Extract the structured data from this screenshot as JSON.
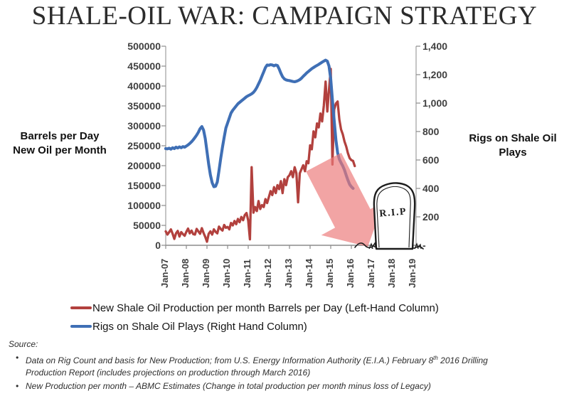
{
  "title": "SHALE-OIL WAR: CAMPAIGN STRATEGY",
  "left_axis": {
    "caption_line1": "Barrels per Day",
    "caption_line2": "New Oil per Month",
    "ticks": [
      "500000",
      "450000",
      "400000",
      "350000",
      "300000",
      "250000",
      "200000",
      "150000",
      "100000",
      "50000",
      "0"
    ]
  },
  "right_axis": {
    "caption_line1": "Rigs on Shale Oil",
    "caption_line2": "Plays",
    "ticks": [
      "1,400",
      "1,200",
      "1,000",
      "800",
      "600",
      "400",
      "200",
      "-"
    ]
  },
  "x_axis": {
    "ticks": [
      "Jan-07",
      "Jan-08",
      "Jan-09",
      "Jan-10",
      "Jan-11",
      "Jan-12",
      "Jan-13",
      "Jan-14",
      "Jan-15",
      "Jan-16",
      "Jan-17",
      "Jan-18",
      "Jan-19"
    ]
  },
  "legend": {
    "items": [
      {
        "label": "New Shale Oil Production per month Barrels per Day (Left-Hand Column)",
        "color": "#b2413e"
      },
      {
        "label": "Rigs on Shale Oil Plays (Right Hand Column)",
        "color": "#3f6fb5"
      }
    ]
  },
  "annotations": {
    "tombstone_text": "R.I.P",
    "arrow_color": "#ec7979"
  },
  "source": {
    "heading": "Source:",
    "bullet_char": "•",
    "bullets": [
      {
        "pre": "Data on Rig Count and basis for New Production; from U.S. Energy Information Authority (E.I.A.) February 8",
        "sup": "th",
        "post": " 2016 Drilling Production Report (includes projections on production through March 2016)"
      },
      {
        "text": "New Production per month – ABMC Estimates (Change in total production per month minus loss of Legacy)"
      }
    ]
  },
  "chart_data": {
    "type": "line",
    "title": "SHALE-OIL WAR: CAMPAIGN STRATEGY",
    "x_unit": "monthly from Jan-2007",
    "x_tick_labels": [
      "Jan-07",
      "Jan-08",
      "Jan-09",
      "Jan-10",
      "Jan-11",
      "Jan-12",
      "Jan-13",
      "Jan-14",
      "Jan-15",
      "Jan-16",
      "Jan-17",
      "Jan-18",
      "Jan-19"
    ],
    "left_ylabel": "Barrels per Day New Oil per Month",
    "right_ylabel": "Rigs on Shale Oil Plays",
    "left_ylim": [
      0,
      500000
    ],
    "right_ylim": [
      0,
      1400
    ],
    "grid": false,
    "legend_position": "bottom-left",
    "series": [
      {
        "name": "New Shale Oil Production per month Barrels per Day (Left-Hand Column)",
        "axis": "left",
        "color": "#b2413e",
        "start": "Jan-2007",
        "values": [
          35000,
          27000,
          33000,
          40000,
          29000,
          16000,
          30000,
          36000,
          22000,
          33000,
          28000,
          24000,
          34000,
          42000,
          30000,
          37000,
          28000,
          27000,
          41000,
          35000,
          29000,
          43000,
          31000,
          21000,
          9000,
          29000,
          35000,
          27000,
          40000,
          34000,
          30000,
          47000,
          41000,
          37000,
          51000,
          44000,
          46000,
          40000,
          56000,
          50000,
          61000,
          53000,
          66000,
          58000,
          71000,
          63000,
          76000,
          81000,
          62000,
          15000,
          196000,
          82000,
          96000,
          86000,
          111000,
          91000,
          101000,
          96000,
          116000,
          106000,
          121000,
          136000,
          126000,
          146000,
          131000,
          151000,
          141000,
          161000,
          131000,
          166000,
          151000,
          171000,
          176000,
          186000,
          171000,
          196000,
          181000,
          108000,
          181000,
          191000,
          201000,
          186000,
          211000,
          206000,
          251000,
          241000,
          286000,
          271000,
          306000,
          296000,
          331000,
          311000,
          351000,
          411000,
          336000,
          391000,
          443000,
          203000,
          341000,
          356000,
          361000,
          316000,
          291000,
          279000,
          261000,
          248000,
          231000,
          219000,
          214000,
          212000,
          199000
        ]
      },
      {
        "name": "Rigs on Shale Oil Plays (Right Hand Column)",
        "axis": "right",
        "color": "#3f6fb5",
        "start": "Jan-2007",
        "values": [
          680,
          678,
          683,
          676,
          686,
          680,
          690,
          684,
          692,
          686,
          694,
          690,
          698,
          706,
          716,
          728,
          742,
          758,
          775,
          795,
          820,
          835,
          810,
          750,
          660,
          570,
          495,
          440,
          412,
          415,
          445,
          525,
          610,
          690,
          760,
          825,
          860,
          895,
          930,
          950,
          965,
          980,
          995,
          1005,
          1015,
          1025,
          1035,
          1045,
          1052,
          1058,
          1065,
          1075,
          1090,
          1110,
          1135,
          1160,
          1190,
          1220,
          1250,
          1268,
          1266,
          1270,
          1268,
          1262,
          1268,
          1264,
          1240,
          1210,
          1185,
          1170,
          1163,
          1160,
          1158,
          1155,
          1152,
          1150,
          1153,
          1158,
          1165,
          1175,
          1188,
          1200,
          1212,
          1222,
          1232,
          1242,
          1250,
          1258,
          1265,
          1272,
          1280,
          1288,
          1295,
          1302,
          1295,
          1260,
          1170,
          1020,
          880,
          740,
          650,
          605,
          580,
          558,
          530,
          492,
          458,
          428,
          412,
          400
        ]
      }
    ]
  }
}
